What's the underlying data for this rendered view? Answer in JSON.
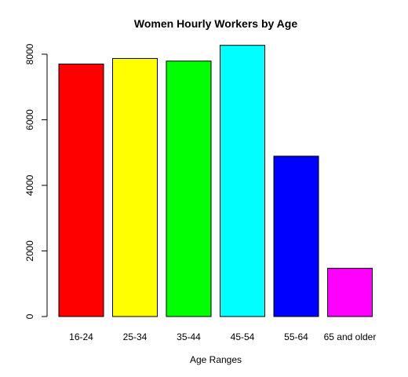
{
  "chart_data": {
    "type": "bar",
    "title": "Women Hourly Workers by Age",
    "xlabel": "Age Ranges",
    "ylabel": "",
    "categories": [
      "16-24",
      "25-34",
      "35-44",
      "45-54",
      "55-64",
      "65 and older"
    ],
    "values": [
      7700,
      7870,
      7790,
      8270,
      4890,
      1470
    ],
    "colors": [
      "#FF0000",
      "#FFFF00",
      "#00FF00",
      "#00FFFF",
      "#0000FF",
      "#FF00FF"
    ],
    "ylim": [
      0,
      8300
    ],
    "yticks": [
      0,
      2000,
      4000,
      6000,
      8000
    ],
    "grid": false,
    "legend": "none"
  }
}
